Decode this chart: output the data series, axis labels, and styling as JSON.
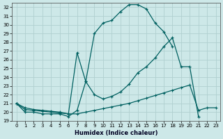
{
  "xlabel": "Humidex (Indice chaleur)",
  "xlim": [
    -0.5,
    23.5
  ],
  "ylim": [
    19,
    32.5
  ],
  "yticks": [
    19,
    20,
    21,
    22,
    23,
    24,
    25,
    26,
    27,
    28,
    29,
    30,
    31,
    32
  ],
  "xticks": [
    0,
    1,
    2,
    3,
    4,
    5,
    6,
    7,
    8,
    9,
    10,
    11,
    12,
    13,
    14,
    15,
    16,
    17,
    18,
    19,
    20,
    21,
    22,
    23
  ],
  "bg_color": "#cde8e8",
  "grid_color": "#b0d0d0",
  "line_color": "#006060",
  "line1_x": [
    0,
    1,
    2,
    3,
    4,
    5,
    6,
    7,
    8,
    9,
    10,
    11,
    12,
    13,
    14,
    15,
    16,
    17,
    18
  ],
  "line1_y": [
    21.0,
    20.0,
    20.0,
    19.8,
    19.8,
    19.8,
    19.5,
    20.2,
    23.5,
    29.0,
    30.2,
    30.5,
    31.5,
    32.3,
    32.3,
    31.8,
    30.2,
    29.2,
    27.5
  ],
  "line2_x": [
    0,
    1,
    2,
    3,
    4,
    5,
    6,
    7,
    8,
    9,
    10,
    11,
    12,
    13,
    14,
    15,
    16,
    17,
    18,
    19,
    20,
    21
  ],
  "line2_y": [
    21.0,
    20.5,
    20.3,
    20.2,
    20.1,
    20.0,
    19.8,
    26.8,
    23.5,
    22.0,
    21.5,
    21.8,
    22.3,
    23.2,
    24.5,
    25.2,
    26.2,
    27.5,
    28.5,
    25.2,
    25.2,
    19.5
  ],
  "line3_x": [
    0,
    1,
    2,
    3,
    4,
    5,
    6,
    7,
    8,
    9,
    10,
    11,
    12,
    13,
    14,
    15,
    16,
    17,
    18,
    19,
    20,
    21,
    22,
    23
  ],
  "line3_y": [
    21.0,
    20.3,
    20.2,
    20.1,
    20.0,
    19.9,
    19.8,
    19.8,
    20.0,
    20.2,
    20.4,
    20.6,
    20.8,
    21.0,
    21.3,
    21.6,
    21.9,
    22.2,
    22.5,
    22.8,
    23.1,
    20.2,
    20.5,
    20.5
  ]
}
